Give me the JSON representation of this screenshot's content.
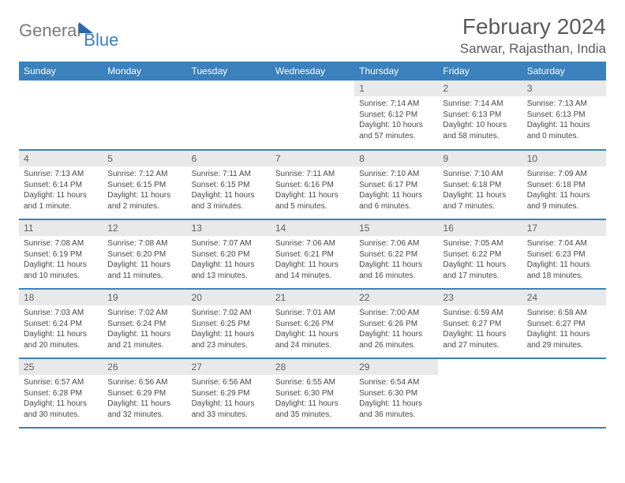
{
  "logo": {
    "general": "General",
    "blue": "Blue"
  },
  "title": "February 2024",
  "location": "Sarwar, Rajasthan, India",
  "colors": {
    "header_bg": "#3a81bd",
    "header_text": "#ffffff",
    "daynum_bg": "#e9e9e9",
    "border": "#3a81bd",
    "text": "#484848",
    "title_text": "#5a5a5a"
  },
  "days_of_week": [
    "Sunday",
    "Monday",
    "Tuesday",
    "Wednesday",
    "Thursday",
    "Friday",
    "Saturday"
  ],
  "weeks": [
    [
      null,
      null,
      null,
      null,
      {
        "n": "1",
        "sunrise": "Sunrise: 7:14 AM",
        "sunset": "Sunset: 6:12 PM",
        "daylight": "Daylight: 10 hours and 57 minutes."
      },
      {
        "n": "2",
        "sunrise": "Sunrise: 7:14 AM",
        "sunset": "Sunset: 6:13 PM",
        "daylight": "Daylight: 10 hours and 58 minutes."
      },
      {
        "n": "3",
        "sunrise": "Sunrise: 7:13 AM",
        "sunset": "Sunset: 6:13 PM",
        "daylight": "Daylight: 11 hours and 0 minutes."
      }
    ],
    [
      {
        "n": "4",
        "sunrise": "Sunrise: 7:13 AM",
        "sunset": "Sunset: 6:14 PM",
        "daylight": "Daylight: 11 hours and 1 minute."
      },
      {
        "n": "5",
        "sunrise": "Sunrise: 7:12 AM",
        "sunset": "Sunset: 6:15 PM",
        "daylight": "Daylight: 11 hours and 2 minutes."
      },
      {
        "n": "6",
        "sunrise": "Sunrise: 7:11 AM",
        "sunset": "Sunset: 6:15 PM",
        "daylight": "Daylight: 11 hours and 3 minutes."
      },
      {
        "n": "7",
        "sunrise": "Sunrise: 7:11 AM",
        "sunset": "Sunset: 6:16 PM",
        "daylight": "Daylight: 11 hours and 5 minutes."
      },
      {
        "n": "8",
        "sunrise": "Sunrise: 7:10 AM",
        "sunset": "Sunset: 6:17 PM",
        "daylight": "Daylight: 11 hours and 6 minutes."
      },
      {
        "n": "9",
        "sunrise": "Sunrise: 7:10 AM",
        "sunset": "Sunset: 6:18 PM",
        "daylight": "Daylight: 11 hours and 7 minutes."
      },
      {
        "n": "10",
        "sunrise": "Sunrise: 7:09 AM",
        "sunset": "Sunset: 6:18 PM",
        "daylight": "Daylight: 11 hours and 9 minutes."
      }
    ],
    [
      {
        "n": "11",
        "sunrise": "Sunrise: 7:08 AM",
        "sunset": "Sunset: 6:19 PM",
        "daylight": "Daylight: 11 hours and 10 minutes."
      },
      {
        "n": "12",
        "sunrise": "Sunrise: 7:08 AM",
        "sunset": "Sunset: 6:20 PM",
        "daylight": "Daylight: 11 hours and 11 minutes."
      },
      {
        "n": "13",
        "sunrise": "Sunrise: 7:07 AM",
        "sunset": "Sunset: 6:20 PM",
        "daylight": "Daylight: 11 hours and 13 minutes."
      },
      {
        "n": "14",
        "sunrise": "Sunrise: 7:06 AM",
        "sunset": "Sunset: 6:21 PM",
        "daylight": "Daylight: 11 hours and 14 minutes."
      },
      {
        "n": "15",
        "sunrise": "Sunrise: 7:06 AM",
        "sunset": "Sunset: 6:22 PM",
        "daylight": "Daylight: 11 hours and 16 minutes."
      },
      {
        "n": "16",
        "sunrise": "Sunrise: 7:05 AM",
        "sunset": "Sunset: 6:22 PM",
        "daylight": "Daylight: 11 hours and 17 minutes."
      },
      {
        "n": "17",
        "sunrise": "Sunrise: 7:04 AM",
        "sunset": "Sunset: 6:23 PM",
        "daylight": "Daylight: 11 hours and 18 minutes."
      }
    ],
    [
      {
        "n": "18",
        "sunrise": "Sunrise: 7:03 AM",
        "sunset": "Sunset: 6:24 PM",
        "daylight": "Daylight: 11 hours and 20 minutes."
      },
      {
        "n": "19",
        "sunrise": "Sunrise: 7:02 AM",
        "sunset": "Sunset: 6:24 PM",
        "daylight": "Daylight: 11 hours and 21 minutes."
      },
      {
        "n": "20",
        "sunrise": "Sunrise: 7:02 AM",
        "sunset": "Sunset: 6:25 PM",
        "daylight": "Daylight: 11 hours and 23 minutes."
      },
      {
        "n": "21",
        "sunrise": "Sunrise: 7:01 AM",
        "sunset": "Sunset: 6:26 PM",
        "daylight": "Daylight: 11 hours and 24 minutes."
      },
      {
        "n": "22",
        "sunrise": "Sunrise: 7:00 AM",
        "sunset": "Sunset: 6:26 PM",
        "daylight": "Daylight: 11 hours and 26 minutes."
      },
      {
        "n": "23",
        "sunrise": "Sunrise: 6:59 AM",
        "sunset": "Sunset: 6:27 PM",
        "daylight": "Daylight: 11 hours and 27 minutes."
      },
      {
        "n": "24",
        "sunrise": "Sunrise: 6:58 AM",
        "sunset": "Sunset: 6:27 PM",
        "daylight": "Daylight: 11 hours and 29 minutes."
      }
    ],
    [
      {
        "n": "25",
        "sunrise": "Sunrise: 6:57 AM",
        "sunset": "Sunset: 6:28 PM",
        "daylight": "Daylight: 11 hours and 30 minutes."
      },
      {
        "n": "26",
        "sunrise": "Sunrise: 6:56 AM",
        "sunset": "Sunset: 6:29 PM",
        "daylight": "Daylight: 11 hours and 32 minutes."
      },
      {
        "n": "27",
        "sunrise": "Sunrise: 6:56 AM",
        "sunset": "Sunset: 6:29 PM",
        "daylight": "Daylight: 11 hours and 33 minutes."
      },
      {
        "n": "28",
        "sunrise": "Sunrise: 6:55 AM",
        "sunset": "Sunset: 6:30 PM",
        "daylight": "Daylight: 11 hours and 35 minutes."
      },
      {
        "n": "29",
        "sunrise": "Sunrise: 6:54 AM",
        "sunset": "Sunset: 6:30 PM",
        "daylight": "Daylight: 11 hours and 36 minutes."
      },
      null,
      null
    ]
  ]
}
